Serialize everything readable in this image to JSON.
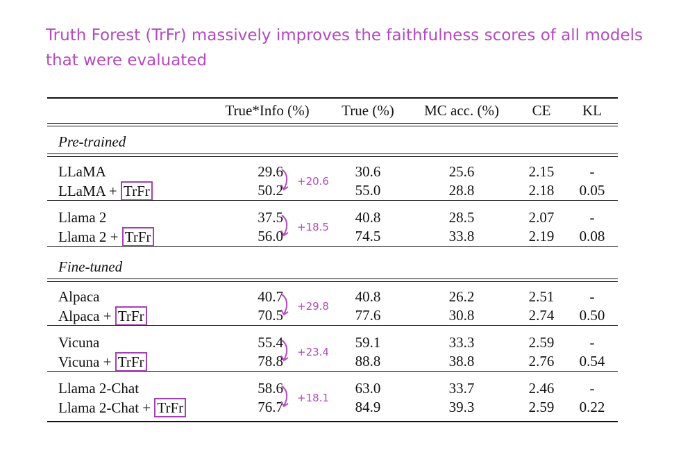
{
  "title": "Truth Forest (TrFr) massively improves the faithfulness scores of all models that were evaluated",
  "accent_color": "#b44ac0",
  "table": {
    "columns": [
      "True*Info (%)",
      "True (%)",
      "MC acc. (%)",
      "CE",
      "KL"
    ],
    "sections": [
      {
        "label": "Pre-trained",
        "groups": [
          {
            "delta": "+20.6",
            "rows": [
              {
                "model": "LLaMA",
                "tag": "",
                "true_info": "29.6",
                "true": "30.6",
                "mc": "25.6",
                "ce": "2.15",
                "kl": "-"
              },
              {
                "model": "LLaMA +",
                "tag": "TrFr",
                "true_info": "50.2",
                "true": "55.0",
                "mc": "28.8",
                "ce": "2.18",
                "kl": "0.05"
              }
            ]
          },
          {
            "delta": "+18.5",
            "rows": [
              {
                "model": "Llama 2",
                "tag": "",
                "true_info": "37.5",
                "true": "40.8",
                "mc": "28.5",
                "ce": "2.07",
                "kl": "-"
              },
              {
                "model": "Llama 2 +",
                "tag": "TrFr",
                "true_info": "56.0",
                "true": "74.5",
                "mc": "33.8",
                "ce": "2.19",
                "kl": "0.08"
              }
            ]
          }
        ]
      },
      {
        "label": "Fine-tuned",
        "groups": [
          {
            "delta": "+29.8",
            "rows": [
              {
                "model": "Alpaca",
                "tag": "",
                "true_info": "40.7",
                "true": "40.8",
                "mc": "26.2",
                "ce": "2.51",
                "kl": "-"
              },
              {
                "model": "Alpaca +",
                "tag": "TrFr",
                "true_info": "70.5",
                "true": "77.6",
                "mc": "30.8",
                "ce": "2.74",
                "kl": "0.50"
              }
            ]
          },
          {
            "delta": "+23.4",
            "rows": [
              {
                "model": "Vicuna",
                "tag": "",
                "true_info": "55.4",
                "true": "59.1",
                "mc": "33.3",
                "ce": "2.59",
                "kl": "-"
              },
              {
                "model": "Vicuna +",
                "tag": "TrFr",
                "true_info": "78.8",
                "true": "88.8",
                "mc": "38.8",
                "ce": "2.76",
                "kl": "0.54"
              }
            ]
          },
          {
            "delta": "+18.1",
            "rows": [
              {
                "model": "Llama 2-Chat",
                "tag": "",
                "true_info": "58.6",
                "true": "63.0",
                "mc": "33.7",
                "ce": "2.46",
                "kl": "-"
              },
              {
                "model": "Llama 2-Chat +",
                "tag": "TrFr",
                "true_info": "76.7",
                "true": "84.9",
                "mc": "39.3",
                "ce": "2.59",
                "kl": "0.22"
              }
            ]
          }
        ]
      }
    ]
  }
}
